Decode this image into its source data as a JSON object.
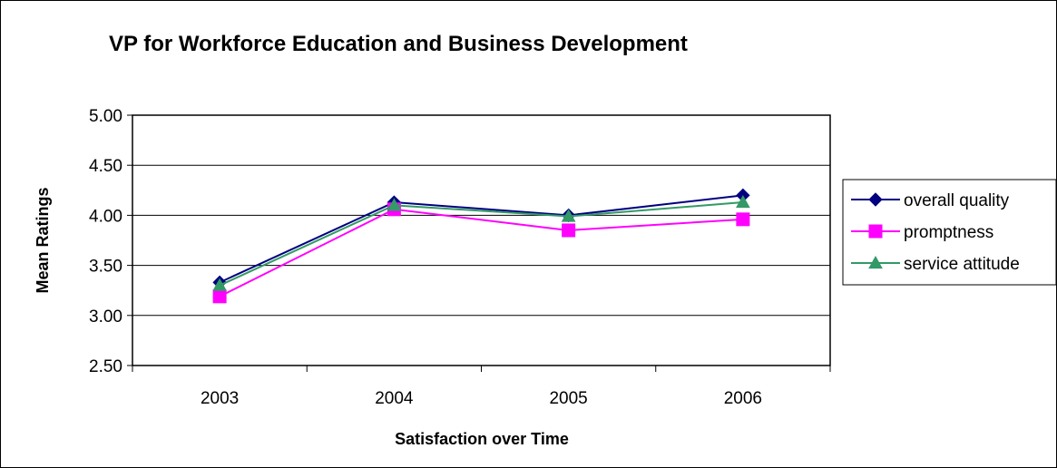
{
  "chart_data": {
    "type": "line",
    "title": "VP for Workforce Education and Business Development",
    "xlabel": "Satisfaction over Time",
    "ylabel": "Mean Ratings",
    "categories": [
      "2003",
      "2004",
      "2005",
      "2006"
    ],
    "ylim": [
      2.5,
      5.0
    ],
    "ytick_step": 0.5,
    "yticks": [
      "5.00",
      "4.50",
      "4.00",
      "3.50",
      "3.00",
      "2.50"
    ],
    "grid": true,
    "legend_position": "right",
    "series": [
      {
        "name": "overall quality",
        "color": "#000080",
        "marker": "diamond",
        "values": [
          3.33,
          4.13,
          4.0,
          4.2
        ]
      },
      {
        "name": "promptness",
        "color": "#FF00FF",
        "marker": "square",
        "values": [
          3.19,
          4.06,
          3.85,
          3.96
        ]
      },
      {
        "name": "service attitude",
        "color": "#339966",
        "marker": "triangle",
        "values": [
          3.3,
          4.1,
          3.99,
          4.13
        ]
      }
    ]
  }
}
